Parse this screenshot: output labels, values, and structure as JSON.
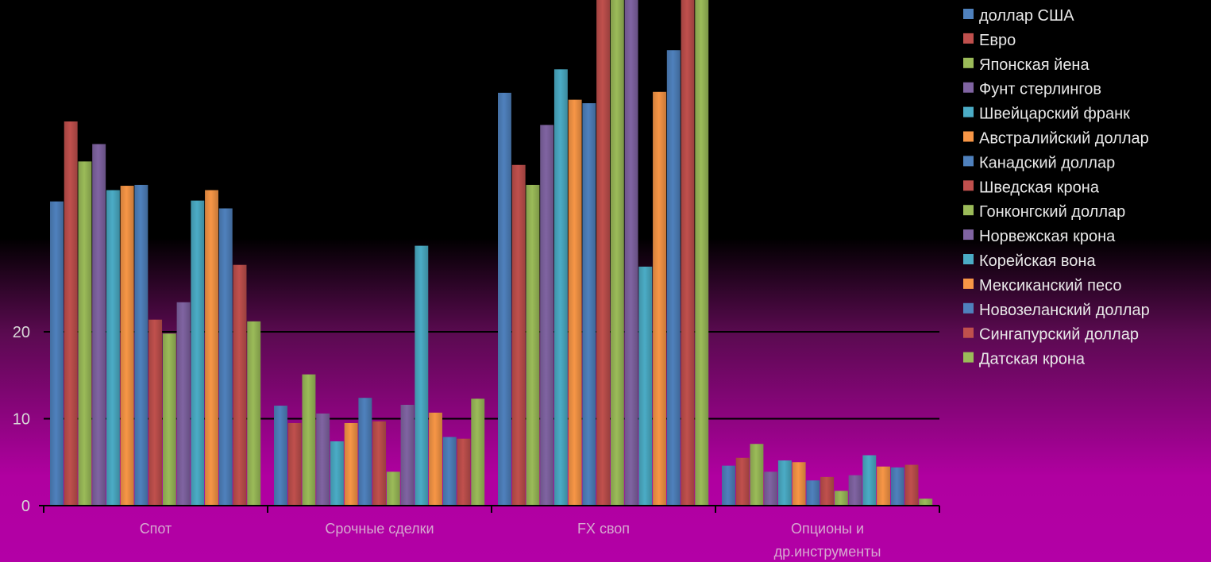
{
  "chart_data": {
    "type": "bar",
    "title": "",
    "xlabel": "",
    "ylabel": "",
    "categories": [
      "Спот",
      "Срочные сделки",
      "FX своп",
      "Опционы и др.инструменты"
    ],
    "category_lines": [
      [
        "Спот"
      ],
      [
        "Срочные сделки"
      ],
      [
        "FX своп"
      ],
      [
        "Опционы и",
        "др.инструменты"
      ]
    ],
    "ylim": [
      0,
      60
    ],
    "yticks": [
      0,
      10,
      20
    ],
    "gridlines": [
      10,
      20
    ],
    "legend_position": "top-right",
    "series": [
      {
        "name": "доллар США",
        "color": "#4f81bd",
        "values": [
          35,
          11.5,
          47.5,
          4.6
        ]
      },
      {
        "name": "Евро",
        "color": "#c0504d",
        "values": [
          44.2,
          9.5,
          39.2,
          5.5
        ]
      },
      {
        "name": "Японская йена",
        "color": "#9bbb59",
        "values": [
          39.6,
          15.1,
          36.9,
          7.1
        ]
      },
      {
        "name": "Фунт стерлингов",
        "color": "#8064a2",
        "values": [
          41.6,
          10.6,
          43.8,
          3.9
        ]
      },
      {
        "name": "Швейцарский франк",
        "color": "#4bacc6",
        "values": [
          36.3,
          7.4,
          50.2,
          5.2
        ]
      },
      {
        "name": "Австралийский доллар",
        "color": "#f79646",
        "values": [
          36.8,
          9.5,
          46.7,
          5
        ]
      },
      {
        "name": "Канадский доллар",
        "color": "#4f81bd",
        "values": [
          36.9,
          12.4,
          46.3,
          2.9
        ]
      },
      {
        "name": "Шведская крона",
        "color": "#c0504d",
        "values": [
          21.4,
          9.7,
          60,
          3.3
        ]
      },
      {
        "name": "Гонконгский доллар",
        "color": "#9bbb59",
        "values": [
          19.8,
          3.9,
          60,
          1.7
        ]
      },
      {
        "name": "Норвежская крона",
        "color": "#8064a2",
        "values": [
          23.4,
          11.6,
          60,
          3.5
        ]
      },
      {
        "name": "Корейская вона",
        "color": "#4bacc6",
        "values": [
          35.1,
          29.9,
          27.5,
          5.8
        ]
      },
      {
        "name": "Мексиканский песо",
        "color": "#f79646",
        "values": [
          36.3,
          10.7,
          47.6,
          4.5
        ]
      },
      {
        "name": "Новозеланский доллар",
        "color": "#4f81bd",
        "values": [
          34.2,
          7.9,
          52.4,
          4.4
        ]
      },
      {
        "name": "Сингапурский доллар",
        "color": "#c0504d",
        "values": [
          27.7,
          7.7,
          60,
          4.7
        ]
      },
      {
        "name": "Датская крона",
        "color": "#9bbb59",
        "values": [
          21.2,
          12.3,
          60,
          0.8
        ]
      }
    ]
  }
}
